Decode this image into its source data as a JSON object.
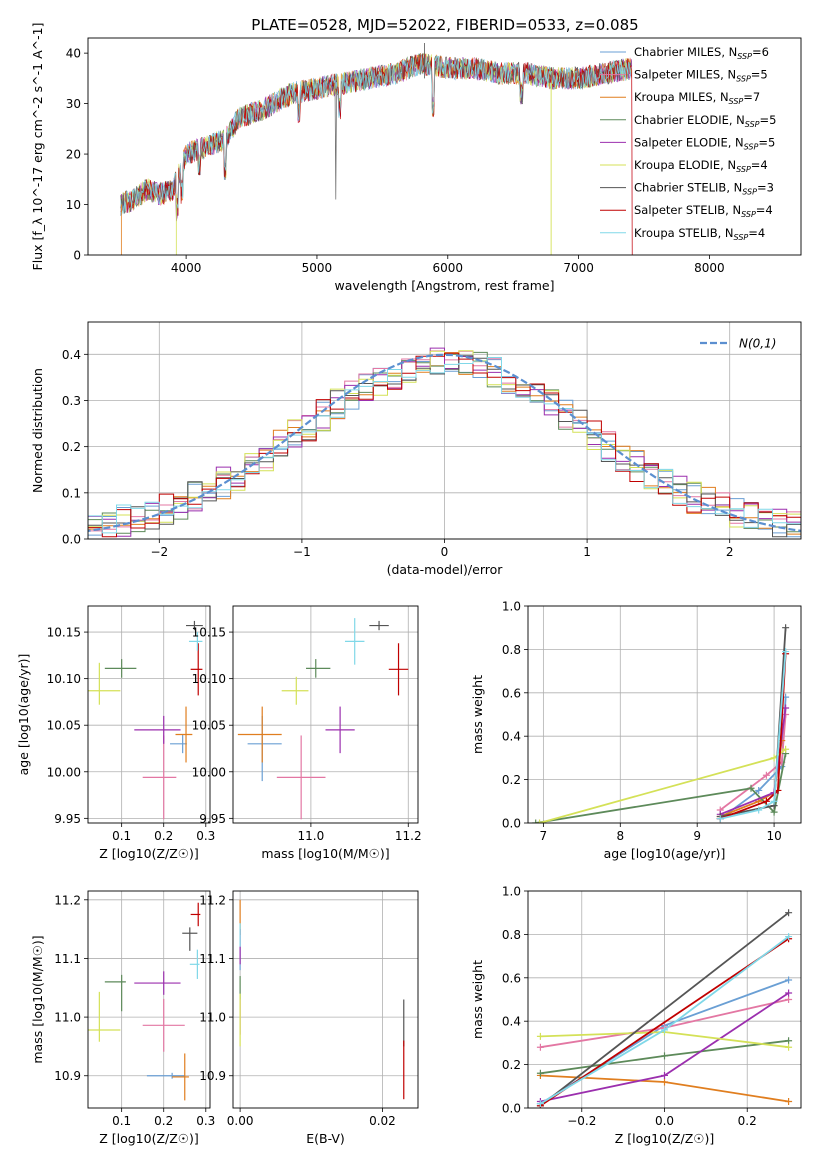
{
  "figure_title": "PLATE=0528, MJD=52022, FIBERID=0533, z=0.085",
  "colors": [
    "#6a9fd4",
    "#e377a3",
    "#e07e1f",
    "#5d8a5a",
    "#9b2fae",
    "#d4e157",
    "#555555",
    "#c00000",
    "#80d8e8"
  ],
  "chart_data": [
    {
      "id": "spectrum",
      "type": "line",
      "title": "PLATE=0528, MJD=52022, FIBERID=0533, z=0.085",
      "xlabel": "wavelength [Angstrom, rest frame]",
      "ylabel": "Flux [f_λ 10^-17 erg cm^-2 s^-1 A^-1]",
      "xlim": [
        3250,
        8700
      ],
      "ylim": [
        0,
        43
      ],
      "xticks": [
        4000,
        5000,
        6000,
        7000,
        8000
      ],
      "yticks": [
        0,
        10,
        20,
        30,
        40
      ],
      "grid": false,
      "legend_position": "top-right",
      "series": [
        {
          "name": "Chabrier MILES, N_SSP=6"
        },
        {
          "name": "Salpeter MILES, N_SSP=5"
        },
        {
          "name": "Kroupa MILES, N_SSP=7"
        },
        {
          "name": "Chabrier ELODIE, N_SSP=5"
        },
        {
          "name": "Salpeter ELODIE, N_SSP=5"
        },
        {
          "name": "Kroupa ELODIE, N_SSP=4"
        },
        {
          "name": "Chabrier STELIB, N_SSP=3"
        },
        {
          "name": "Salpeter STELIB, N_SSP=4"
        },
        {
          "name": "Kroupa STELIB, N_SSP=4"
        }
      ],
      "continuum": {
        "x": [
          3500,
          3600,
          3700,
          3800,
          3900,
          4000,
          4100,
          4200,
          4300,
          4400,
          4600,
          4800,
          5000,
          5200,
          5400,
          5600,
          5800,
          6000,
          6200,
          6400,
          6600,
          6800,
          7000,
          7200,
          7400
        ],
        "y": [
          10,
          11,
          13,
          12,
          13,
          20,
          21,
          22,
          23,
          27,
          29,
          32,
          33,
          34,
          35,
          36,
          38,
          37,
          37,
          36,
          36,
          35,
          35,
          36,
          37
        ]
      }
    },
    {
      "id": "residuals",
      "type": "step",
      "xlabel": "(data-model)/error",
      "ylabel": "Normed distribution",
      "xlim": [
        -2.5,
        2.5
      ],
      "ylim": [
        0,
        0.47
      ],
      "xticks": [
        -2,
        -1,
        0,
        1,
        2
      ],
      "yticks": [
        0.0,
        0.1,
        0.2,
        0.3,
        0.4
      ],
      "grid": true,
      "legend_position": "top-right",
      "reference_label": "N(0,1)"
    },
    {
      "id": "age_vs_Z",
      "type": "errorbar",
      "xlabel": "Z [log10(Z/Z☉)]",
      "ylabel": "age [log10(age/yr)]",
      "xlim": [
        0.02,
        0.31
      ],
      "ylim": [
        9.945,
        10.178
      ],
      "xticks": [
        0.1,
        0.2,
        0.3
      ],
      "yticks": [
        9.95,
        10.0,
        10.05,
        10.1,
        10.15
      ],
      "grid": true,
      "points": [
        {
          "x": 0.245,
          "y": 10.03,
          "xerr": [
            0.03,
            0.01
          ],
          "yerr": [
            0.01,
            0.01
          ]
        },
        {
          "x": 0.2,
          "y": 9.994,
          "xerr": [
            0.05,
            0.03
          ],
          "yerr": [
            0.045,
            0.045
          ]
        },
        {
          "x": 0.253,
          "y": 10.04,
          "xerr": [
            0.025,
            0.015
          ],
          "yerr": [
            0.03,
            0.03
          ]
        },
        {
          "x": 0.1,
          "y": 10.111,
          "xerr": [
            0.04,
            0.035
          ],
          "yerr": [
            0.01,
            0.01
          ]
        },
        {
          "x": 0.2,
          "y": 10.045,
          "xerr": [
            0.07,
            0.04
          ],
          "yerr": [
            0.015,
            0.015
          ]
        },
        {
          "x": 0.047,
          "y": 10.087,
          "xerr": [
            0.05,
            0.05
          ],
          "yerr": [
            0.015,
            0.03
          ]
        },
        {
          "x": 0.273,
          "y": 10.157,
          "xerr": [
            0.02,
            0.02
          ],
          "yerr": [
            0.005,
            0.005
          ]
        },
        {
          "x": 0.282,
          "y": 10.11,
          "xerr": [
            0.018,
            0.01
          ],
          "yerr": [
            0.028,
            0.028
          ]
        },
        {
          "x": 0.28,
          "y": 10.14,
          "xerr": [
            0.02,
            0.012
          ],
          "yerr": [
            0.01,
            0.01
          ]
        }
      ]
    },
    {
      "id": "age_vs_mass",
      "type": "errorbar",
      "xlabel": "mass [log10(M/M☉)]",
      "ylabel": "",
      "xlim": [
        10.84,
        11.22
      ],
      "ylim": [
        9.945,
        10.178
      ],
      "xticks": [
        11.0,
        11.2
      ],
      "yticks": [
        9.95,
        10.0,
        10.05,
        10.1,
        10.15
      ],
      "grid": true,
      "points": [
        {
          "x": 10.9,
          "y": 10.03,
          "xerr": [
            0.03,
            0.04
          ],
          "yerr": [
            0.04,
            0.03
          ]
        },
        {
          "x": 10.98,
          "y": 9.994,
          "xerr": [
            0.05,
            0.05
          ],
          "yerr": [
            0.045,
            0.045
          ]
        },
        {
          "x": 10.9,
          "y": 10.04,
          "xerr": [
            0.05,
            0.04
          ],
          "yerr": [
            0.03,
            0.03
          ]
        },
        {
          "x": 11.01,
          "y": 10.111,
          "xerr": [
            0.02,
            0.03
          ],
          "yerr": [
            0.01,
            0.01
          ]
        },
        {
          "x": 11.06,
          "y": 10.045,
          "xerr": [
            0.03,
            0.03
          ],
          "yerr": [
            0.025,
            0.025
          ]
        },
        {
          "x": 10.97,
          "y": 10.087,
          "xerr": [
            0.03,
            0.025
          ],
          "yerr": [
            0.015,
            0.015
          ]
        },
        {
          "x": 11.14,
          "y": 10.157,
          "xerr": [
            0.02,
            0.02
          ],
          "yerr": [
            0.005,
            0.005
          ]
        },
        {
          "x": 11.18,
          "y": 10.11,
          "xerr": [
            0.02,
            0.02
          ],
          "yerr": [
            0.028,
            0.028
          ]
        },
        {
          "x": 11.09,
          "y": 10.14,
          "xerr": [
            0.02,
            0.02
          ],
          "yerr": [
            0.025,
            0.025
          ]
        }
      ]
    },
    {
      "id": "weight_vs_age",
      "type": "line",
      "xlabel": "age [log10(age/yr)]",
      "ylabel": "mass weight",
      "xlim": [
        6.8,
        10.35
      ],
      "ylim": [
        0,
        1.0
      ],
      "xticks": [
        7,
        8,
        9,
        10
      ],
      "yticks": [
        0.0,
        0.2,
        0.4,
        0.6,
        0.8,
        1.0
      ],
      "grid": true,
      "series": [
        {
          "x": [
            9.3,
            9.8,
            10.1,
            10.15
          ],
          "y": [
            0.02,
            0.15,
            0.26,
            0.58
          ]
        },
        {
          "x": [
            9.3,
            9.9,
            10.1,
            10.15
          ],
          "y": [
            0.06,
            0.22,
            0.28,
            0.5
          ]
        },
        {
          "x": [
            9.3,
            9.8,
            10.0,
            10.1
          ],
          "y": [
            0.03,
            0.1,
            0.14,
            0.38
          ]
        },
        {
          "x": [
            6.9,
            9.7,
            10.0,
            10.15
          ],
          "y": [
            0.0,
            0.16,
            0.05,
            0.32
          ]
        },
        {
          "x": [
            9.3,
            10.0,
            10.15
          ],
          "y": [
            0.04,
            0.14,
            0.53
          ]
        },
        {
          "x": [
            6.95,
            10.0,
            10.15
          ],
          "y": [
            0.0,
            0.3,
            0.34
          ]
        },
        {
          "x": [
            9.3,
            10.0,
            10.15
          ],
          "y": [
            0.03,
            0.08,
            0.9
          ]
        },
        {
          "x": [
            9.3,
            9.9,
            10.05,
            10.15
          ],
          "y": [
            0.02,
            0.1,
            0.15,
            0.78
          ]
        },
        {
          "x": [
            9.3,
            9.8,
            10.0,
            10.15
          ],
          "y": [
            0.02,
            0.06,
            0.1,
            0.79
          ]
        }
      ]
    },
    {
      "id": "mass_vs_Z",
      "type": "errorbar",
      "xlabel": "Z [log10(Z/Z☉)]",
      "ylabel": "mass [log10(M/M☉)]",
      "xlim": [
        0.02,
        0.31
      ],
      "ylim": [
        10.845,
        11.215
      ],
      "xticks": [
        0.1,
        0.2,
        0.3
      ],
      "yticks": [
        10.9,
        11.0,
        11.1,
        11.2
      ],
      "grid": true,
      "points": [
        {
          "x": 0.22,
          "y": 10.9,
          "xerr": [
            0.06,
            0.03
          ],
          "yerr": [
            0.005,
            0.005
          ]
        },
        {
          "x": 0.2,
          "y": 10.986,
          "xerr": [
            0.05,
            0.05
          ],
          "yerr": [
            0.045,
            0.045
          ]
        },
        {
          "x": 0.25,
          "y": 10.898,
          "xerr": [
            0.03,
            0.01
          ],
          "yerr": [
            0.04,
            0.04
          ]
        },
        {
          "x": 0.1,
          "y": 11.06,
          "xerr": [
            0.04,
            0.01
          ],
          "yerr": [
            0.05,
            0.012
          ]
        },
        {
          "x": 0.2,
          "y": 11.058,
          "xerr": [
            0.07,
            0.04
          ],
          "yerr": [
            0.02,
            0.02
          ]
        },
        {
          "x": 0.047,
          "y": 10.978,
          "xerr": [
            0.05,
            0.05
          ],
          "yerr": [
            0.02,
            0.065
          ]
        },
        {
          "x": 0.262,
          "y": 11.143,
          "xerr": [
            0.018,
            0.018
          ],
          "yerr": [
            0.03,
            0.01
          ]
        },
        {
          "x": 0.282,
          "y": 11.175,
          "xerr": [
            0.018,
            0.005
          ],
          "yerr": [
            0.02,
            0.02
          ]
        },
        {
          "x": 0.28,
          "y": 11.09,
          "xerr": [
            0.018,
            0.005
          ],
          "yerr": [
            0.025,
            0.025
          ]
        }
      ]
    },
    {
      "id": "mass_vs_ebv",
      "type": "errorbar",
      "xlabel": "E(B-V)",
      "ylabel": "",
      "xlim": [
        -0.001,
        0.025
      ],
      "ylim": [
        10.845,
        11.215
      ],
      "xticks": [
        0.0,
        0.02
      ],
      "yticks": [
        10.9,
        11.0,
        11.1,
        11.2
      ],
      "grid": true,
      "points": [
        {
          "x": 0.0,
          "y": 11.1,
          "xerr": [
            0,
            0
          ],
          "yerr": [
            0.02,
            0.02
          ]
        },
        {
          "x": 0.0,
          "y": 11.0,
          "xerr": [
            0,
            0
          ],
          "yerr": [
            0.03,
            0.03
          ]
        },
        {
          "x": 0.0,
          "y": 11.17,
          "xerr": [
            0,
            0
          ],
          "yerr": [
            0.03,
            0.03
          ]
        },
        {
          "x": 0.0,
          "y": 11.05,
          "xerr": [
            0,
            0
          ],
          "yerr": [
            0.02,
            0.02
          ]
        },
        {
          "x": 0.0,
          "y": 11.12,
          "xerr": [
            0,
            0
          ],
          "yerr": [
            0.03,
            0.03
          ]
        },
        {
          "x": 0.0,
          "y": 10.98,
          "xerr": [
            0,
            0
          ],
          "yerr": [
            0.03,
            0.06
          ]
        },
        {
          "x": 0.023,
          "y": 10.99,
          "xerr": [
            0,
            0
          ],
          "yerr": [
            0.04,
            0.04
          ]
        },
        {
          "x": 0.023,
          "y": 10.91,
          "xerr": [
            0,
            0
          ],
          "yerr": [
            0.05,
            0.05
          ]
        },
        {
          "x": 0.0,
          "y": 11.14,
          "xerr": [
            0,
            0
          ],
          "yerr": [
            0.02,
            0.02
          ]
        }
      ]
    },
    {
      "id": "weight_vs_Z",
      "type": "line",
      "xlabel": "Z [log10(Z/Z☉)]",
      "ylabel": "mass weight",
      "xlim": [
        -0.33,
        0.33
      ],
      "ylim": [
        0,
        1.0
      ],
      "xticks": [
        -0.2,
        0.0,
        0.2
      ],
      "yticks": [
        0.0,
        0.2,
        0.4,
        0.6,
        0.8,
        1.0
      ],
      "grid": true,
      "series": [
        {
          "x": [
            -0.3,
            0.0,
            0.3
          ],
          "y": [
            0.02,
            0.38,
            0.59
          ]
        },
        {
          "x": [
            -0.3,
            0.0,
            0.3
          ],
          "y": [
            0.28,
            0.37,
            0.5
          ]
        },
        {
          "x": [
            -0.3,
            0.0,
            0.3
          ],
          "y": [
            0.15,
            0.12,
            0.03
          ]
        },
        {
          "x": [
            -0.3,
            0.0,
            0.3
          ],
          "y": [
            0.16,
            0.24,
            0.31
          ]
        },
        {
          "x": [
            -0.3,
            0.0,
            0.3
          ],
          "y": [
            0.03,
            0.15,
            0.53
          ]
        },
        {
          "x": [
            -0.3,
            0.0,
            0.3
          ],
          "y": [
            0.33,
            0.35,
            0.28
          ]
        },
        {
          "x": [
            -0.3,
            0.3
          ],
          "y": [
            0.01,
            0.9
          ]
        },
        {
          "x": [
            -0.3,
            0.3
          ],
          "y": [
            0.01,
            0.78
          ]
        },
        {
          "x": [
            -0.3,
            0.0,
            0.3
          ],
          "y": [
            0.02,
            0.36,
            0.79
          ]
        }
      ]
    }
  ]
}
